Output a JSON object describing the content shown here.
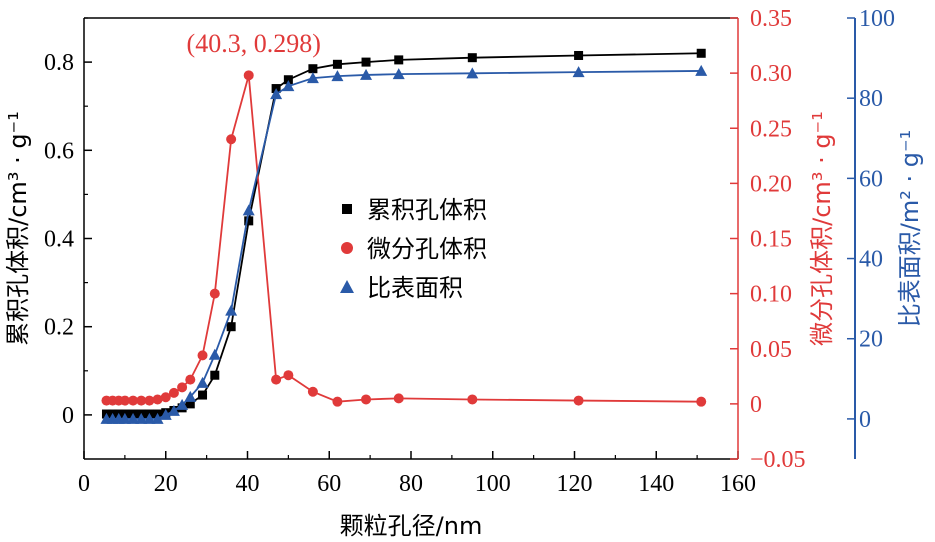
{
  "chart_data": {
    "type": "line",
    "xlabel": "颗粒孔径/nm",
    "xlim": [
      0,
      160
    ],
    "xticks": [
      "0",
      "20",
      "40",
      "60",
      "80",
      "100",
      "120",
      "140",
      "160"
    ],
    "xtick_values": [
      0,
      20,
      40,
      60,
      80,
      100,
      120,
      140,
      160
    ],
    "axes": {
      "left": {
        "label": "累积孔体积/cm³ · g⁻¹",
        "ylim": [
          -0.1,
          0.9
        ],
        "ticks": [
          "0",
          "0.2",
          "0.4",
          "0.6",
          "0.8"
        ],
        "tick_values": [
          0,
          0.2,
          0.4,
          0.6,
          0.8
        ],
        "color": "#000000"
      },
      "right1": {
        "label": "微分孔体积/cm³ · g⁻¹",
        "ylim": [
          -0.05,
          0.35
        ],
        "ticks": [
          "−0.05",
          "0",
          "0.05",
          "0.10",
          "0.15",
          "0.20",
          "0.25",
          "0.30",
          "0.35"
        ],
        "tick_values": [
          -0.05,
          0,
          0.05,
          0.1,
          0.15,
          0.2,
          0.25,
          0.3,
          0.35
        ],
        "color": "#e03a3a"
      },
      "right2": {
        "label": "比表面积/m² · g⁻¹",
        "ylim": [
          -10,
          100
        ],
        "ticks": [
          "0",
          "20",
          "40",
          "60",
          "80",
          "100"
        ],
        "tick_values": [
          0,
          20,
          40,
          60,
          80,
          100
        ],
        "color": "#2a5aa8"
      }
    },
    "series": [
      {
        "name": "累积孔体积",
        "axis": "left",
        "marker": "square",
        "color": "#000000",
        "x": [
          5.5,
          7,
          8.5,
          10,
          12,
          14,
          16,
          18,
          20,
          22,
          24,
          26,
          29,
          32,
          36,
          40.3,
          47,
          50,
          56,
          62,
          69,
          77,
          95,
          121,
          151
        ],
        "y": [
          0.002,
          0.002,
          0.002,
          0.002,
          0.002,
          0.002,
          0.002,
          0.002,
          0.005,
          0.01,
          0.016,
          0.025,
          0.045,
          0.09,
          0.2,
          0.44,
          0.74,
          0.76,
          0.785,
          0.795,
          0.8,
          0.805,
          0.81,
          0.815,
          0.82
        ]
      },
      {
        "name": "微分孔体积",
        "axis": "right1",
        "marker": "circle",
        "color": "#e03a3a",
        "x": [
          5.5,
          7,
          8.5,
          10,
          12,
          14,
          16,
          18,
          20,
          22,
          24,
          26,
          29,
          32,
          36,
          40.3,
          47,
          50,
          56,
          62,
          69,
          77,
          95,
          121,
          151
        ],
        "y": [
          0.003,
          0.003,
          0.003,
          0.003,
          0.003,
          0.003,
          0.003,
          0.004,
          0.006,
          0.01,
          0.015,
          0.022,
          0.044,
          0.1,
          0.24,
          0.298,
          0.022,
          0.026,
          0.011,
          0.002,
          0.004,
          0.005,
          0.004,
          0.003,
          0.002
        ]
      },
      {
        "name": "比表面积",
        "axis": "right2",
        "marker": "triangle",
        "color": "#2a5aa8",
        "x": [
          5.5,
          7,
          8.5,
          10,
          12,
          14,
          16,
          18,
          20,
          22,
          24,
          26,
          29,
          32,
          36,
          40.3,
          47,
          50,
          56,
          62,
          69,
          77,
          95,
          121,
          151
        ],
        "y": [
          0,
          0,
          0,
          0,
          0,
          0,
          0,
          0,
          1,
          2,
          3.5,
          5.5,
          9,
          16,
          27,
          52,
          81,
          83,
          85,
          85.5,
          85.8,
          86,
          86.2,
          86.5,
          86.8
        ]
      }
    ],
    "annotation": {
      "text": "(40.3, 0.298)",
      "x": 40.3,
      "y": 0.298,
      "axis": "right1",
      "color": "#e03a3a"
    },
    "legend": {
      "placement": "center",
      "entries": [
        "累积孔体积",
        "微分孔体积",
        "比表面积"
      ]
    },
    "grid": false
  }
}
